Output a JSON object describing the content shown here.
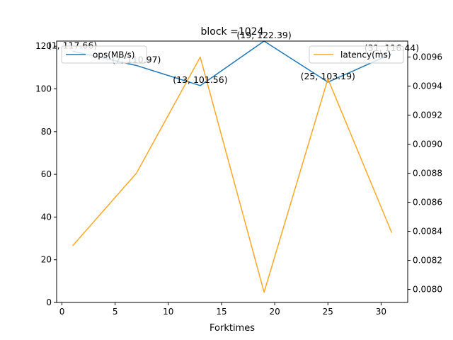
{
  "chart_data": {
    "type": "line",
    "title": "block =1024",
    "xlabel": "Forktimes",
    "ylabel_left": "",
    "ylabel_right": "",
    "x": [
      1,
      7,
      13,
      19,
      25,
      31
    ],
    "xlim": [
      -0.5,
      32.5
    ],
    "x_ticks": [
      0,
      5,
      10,
      15,
      20,
      25,
      30
    ],
    "series": [
      {
        "name": "ops(MB/s)",
        "axis": "left",
        "color": "#1f77b4",
        "values": [
          117.66,
          110.97,
          101.56,
          122.39,
          103.19,
          116.44
        ],
        "point_labels": [
          "(1, 117.66)",
          "(7, 110.97)",
          "(13, 101.56)",
          "(19, 122.39)",
          "(25, 103.19)",
          "(31, 116.44)"
        ]
      },
      {
        "name": "latency(ms)",
        "axis": "right",
        "color": "#ffa726",
        "values": [
          0.0083,
          0.0088,
          0.0096,
          0.00798,
          0.00945,
          0.00839
        ]
      }
    ],
    "ylim_left": [
      0,
      122.4
    ],
    "ylim_right": [
      0.00791,
      0.00971
    ],
    "y_ticks_left": [
      0,
      20,
      40,
      60,
      80,
      100,
      120
    ],
    "y_ticks_right": [
      "0.0080",
      "0.0082",
      "0.0084",
      "0.0086",
      "0.0088",
      "0.0090",
      "0.0092",
      "0.0094",
      "0.0096"
    ],
    "legend_left_position": "top-left",
    "legend_right_position": "top-right",
    "grid": false
  }
}
